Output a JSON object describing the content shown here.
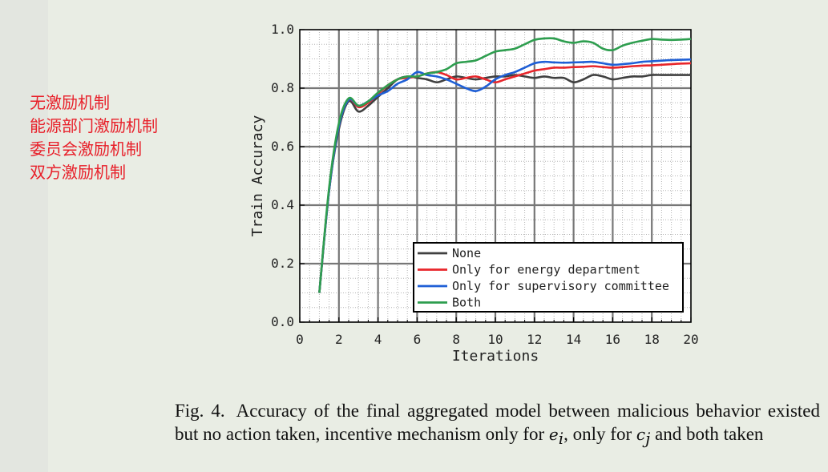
{
  "annotations": [
    "无激励机制",
    "能源部门激励机制",
    "委员会激励机制",
    "双方激励机制"
  ],
  "caption": {
    "fig": "Fig. 4.",
    "text1": "Accuracy of the final aggregated model between malicious behavior existed but no action taken, incentive mechanism only for ",
    "var1": "e",
    "sub1": "i",
    "text2": ", only for ",
    "var2": "c",
    "sub2": "j",
    "text3": " and both taken"
  },
  "chart_data": {
    "type": "line",
    "xlabel": "Iterations",
    "ylabel": "Train Accuracy",
    "xlim": [
      0,
      20
    ],
    "ylim": [
      0,
      1.0
    ],
    "xticks": [
      "0",
      "2",
      "4",
      "6",
      "8",
      "10",
      "12",
      "14",
      "16",
      "18",
      "20"
    ],
    "yticks": [
      "0.0",
      "0.2",
      "0.4",
      "0.6",
      "0.8",
      "1.0"
    ],
    "grid": true,
    "legend_position": "lower-right",
    "series": [
      {
        "name": "None",
        "color": "#404040",
        "x": [
          1,
          1.5,
          2,
          2.5,
          3,
          3.5,
          4,
          4.5,
          5,
          5.5,
          6,
          6.5,
          7,
          7.5,
          8,
          8.5,
          9,
          9.5,
          10,
          10.5,
          11,
          11.5,
          12,
          12.5,
          13,
          13.5,
          14,
          14.5,
          15,
          15.5,
          16,
          16.5,
          17,
          17.5,
          18,
          18.5,
          19,
          19.5,
          20
        ],
        "y": [
          0.1,
          0.45,
          0.66,
          0.755,
          0.72,
          0.74,
          0.77,
          0.8,
          0.83,
          0.84,
          0.835,
          0.83,
          0.82,
          0.83,
          0.84,
          0.835,
          0.83,
          0.835,
          0.84,
          0.84,
          0.845,
          0.84,
          0.835,
          0.84,
          0.835,
          0.835,
          0.82,
          0.83,
          0.845,
          0.84,
          0.83,
          0.835,
          0.84,
          0.84,
          0.845,
          0.845,
          0.845,
          0.845,
          0.845
        ]
      },
      {
        "name": "Only for energy department",
        "color": "#e8262b",
        "x": [
          1,
          1.5,
          2,
          2.5,
          3,
          3.5,
          4,
          4.5,
          5,
          5.5,
          6,
          6.5,
          7,
          7.5,
          8,
          8.5,
          9,
          9.5,
          10,
          10.5,
          11,
          11.5,
          12,
          12.5,
          13,
          13.5,
          14,
          14.5,
          15,
          15.5,
          16,
          16.5,
          17,
          17.5,
          18,
          18.5,
          19,
          19.5,
          20
        ],
        "y": [
          0.1,
          0.45,
          0.67,
          0.76,
          0.735,
          0.75,
          0.78,
          0.81,
          0.83,
          0.835,
          0.84,
          0.85,
          0.855,
          0.845,
          0.83,
          0.835,
          0.84,
          0.83,
          0.82,
          0.83,
          0.84,
          0.85,
          0.86,
          0.865,
          0.87,
          0.87,
          0.872,
          0.873,
          0.875,
          0.872,
          0.87,
          0.872,
          0.875,
          0.877,
          0.878,
          0.88,
          0.882,
          0.884,
          0.885
        ]
      },
      {
        "name": "Only for supervisory committee",
        "color": "#1f5fd6",
        "x": [
          1,
          1.5,
          2,
          2.5,
          3,
          3.5,
          4,
          4.5,
          5,
          5.5,
          6,
          6.5,
          7,
          7.5,
          8,
          8.5,
          9,
          9.5,
          10,
          10.5,
          11,
          11.5,
          12,
          12.5,
          13,
          13.5,
          14,
          14.5,
          15,
          15.5,
          16,
          16.5,
          17,
          17.5,
          18,
          18.5,
          19,
          19.5,
          20
        ],
        "y": [
          0.1,
          0.45,
          0.67,
          0.76,
          0.74,
          0.755,
          0.775,
          0.79,
          0.815,
          0.83,
          0.855,
          0.845,
          0.84,
          0.83,
          0.815,
          0.8,
          0.79,
          0.805,
          0.83,
          0.845,
          0.855,
          0.87,
          0.885,
          0.89,
          0.888,
          0.887,
          0.888,
          0.889,
          0.89,
          0.885,
          0.88,
          0.882,
          0.885,
          0.89,
          0.892,
          0.894,
          0.896,
          0.897,
          0.898
        ]
      },
      {
        "name": "Both",
        "color": "#2e9e4f",
        "x": [
          1,
          1.5,
          2,
          2.5,
          3,
          3.5,
          4,
          4.5,
          5,
          5.5,
          6,
          6.5,
          7,
          7.5,
          8,
          8.5,
          9,
          9.5,
          10,
          10.5,
          11,
          11.5,
          12,
          12.5,
          13,
          13.5,
          14,
          14.5,
          15,
          15.5,
          16,
          16.5,
          17,
          17.5,
          18,
          18.5,
          19,
          19.5,
          20
        ],
        "y": [
          0.1,
          0.46,
          0.68,
          0.765,
          0.74,
          0.755,
          0.785,
          0.81,
          0.83,
          0.84,
          0.84,
          0.85,
          0.855,
          0.865,
          0.885,
          0.89,
          0.895,
          0.91,
          0.925,
          0.93,
          0.935,
          0.95,
          0.965,
          0.97,
          0.97,
          0.96,
          0.955,
          0.96,
          0.955,
          0.935,
          0.93,
          0.945,
          0.955,
          0.962,
          0.968,
          0.966,
          0.965,
          0.966,
          0.968
        ]
      }
    ]
  }
}
